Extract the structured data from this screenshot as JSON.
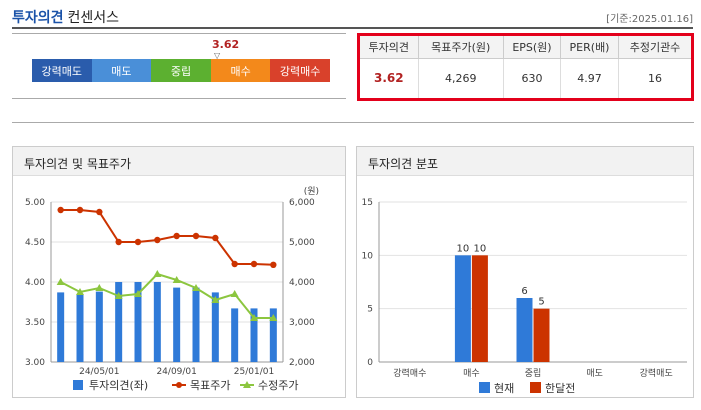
{
  "header": {
    "title_main": "투자의견",
    "title_sub": "컨센서스",
    "date": "[기준:2025.01.16]"
  },
  "scale": {
    "score": "3.62",
    "segments": [
      {
        "label": "강력매도",
        "color": "#2a5cac"
      },
      {
        "label": "매도",
        "color": "#4a8fd8"
      },
      {
        "label": "중립",
        "color": "#5cb030"
      },
      {
        "label": "매수",
        "color": "#f3891b"
      },
      {
        "label": "강력매수",
        "color": "#d9412b"
      }
    ]
  },
  "summary": {
    "headers": [
      "투자의견",
      "목표주가(원)",
      "EPS(원)",
      "PER(배)",
      "추정기관수"
    ],
    "values": [
      "3.62",
      "4,269",
      "630",
      "4.97",
      "16"
    ]
  },
  "panel_left": {
    "title": "투자의견 및 목표주가"
  },
  "panel_right": {
    "title": "투자의견 분포"
  },
  "chart_data": [
    {
      "type": "bar",
      "ylabel_right": "(원)",
      "x_ticks": [
        "24/05/01",
        "24/09/01",
        "25/01/01"
      ],
      "y_left": {
        "ticks": [
          "5.00",
          "4.50",
          "4.00",
          "3.50",
          "3.00"
        ],
        "lim": [
          3.0,
          5.0
        ]
      },
      "y_right": {
        "ticks": [
          "6,000",
          "5,000",
          "4,000",
          "3,000",
          "2,000"
        ],
        "lim": [
          2000,
          6000
        ]
      },
      "series": [
        {
          "name": "투자의견(좌)",
          "type": "bar",
          "color": "#2f7ad8",
          "values": [
            3.87,
            3.85,
            3.88,
            4.0,
            4.0,
            4.0,
            3.93,
            3.93,
            3.87,
            3.67,
            3.67,
            3.67
          ]
        },
        {
          "name": "목표주가",
          "type": "line",
          "color": "#cc3300",
          "values": [
            5800,
            5800,
            5750,
            5000,
            5000,
            5050,
            5150,
            5150,
            5100,
            4450,
            4450,
            4430
          ]
        },
        {
          "name": "수정주가",
          "type": "line",
          "color": "#8cc63f",
          "values": [
            4000,
            3750,
            3850,
            3650,
            3700,
            4200,
            4050,
            3850,
            3550,
            3700,
            3100,
            3100
          ]
        }
      ]
    },
    {
      "type": "bar",
      "categories": [
        "강력매수",
        "매수",
        "중립",
        "매도",
        "강력매도"
      ],
      "ylim": [
        0,
        15
      ],
      "y_ticks": [
        "15",
        "10",
        "5",
        "0"
      ],
      "series": [
        {
          "name": "현재",
          "color": "#2f7ad8",
          "values": [
            0,
            10,
            6,
            0,
            0
          ]
        },
        {
          "name": "한달전",
          "color": "#cc3300",
          "values": [
            0,
            10,
            5,
            0,
            0
          ]
        }
      ]
    }
  ]
}
